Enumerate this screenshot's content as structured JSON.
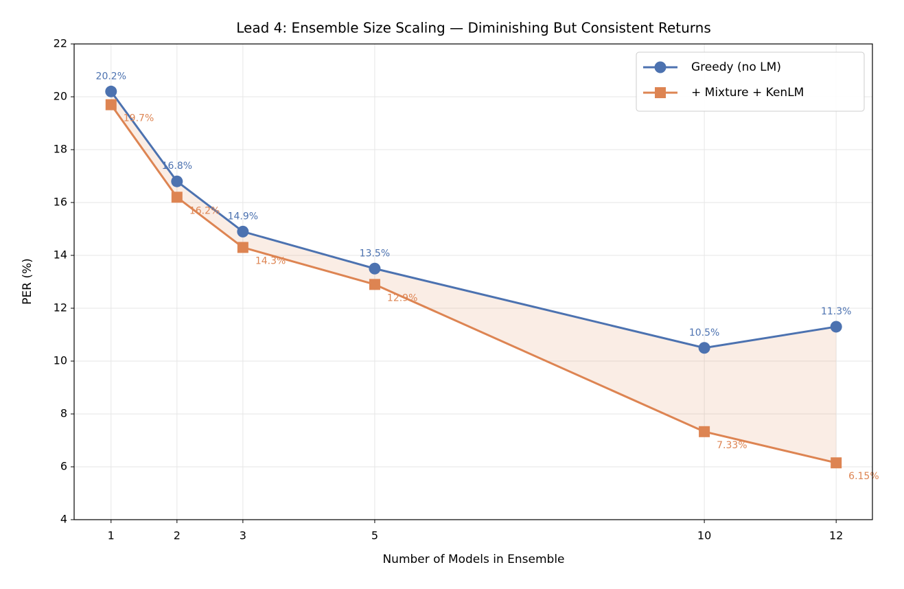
{
  "chart_data": {
    "type": "line",
    "title": "Lead 4: Ensemble Size Scaling — Diminishing But Consistent Returns",
    "x_label": "Number of Models in Ensemble",
    "y_label": "PER (%)",
    "x": [
      1,
      2,
      3,
      5,
      10,
      12
    ],
    "series": [
      {
        "name": "Greedy (no LM)",
        "color": "#4c72b0",
        "marker": "circle",
        "values": [
          20.2,
          16.8,
          14.9,
          13.5,
          10.5,
          11.3
        ],
        "value_labels": [
          "20.2%",
          "16.8%",
          "14.9%",
          "13.5%",
          "10.5%",
          "11.3%"
        ]
      },
      {
        "name": "+ Mixture + KenLM",
        "color": "#dd8452",
        "marker": "square",
        "values": [
          19.7,
          16.2,
          14.3,
          12.9,
          7.33,
          6.15
        ],
        "value_labels": [
          "19.7%",
          "16.2%",
          "14.3%",
          "12.9%",
          "7.33%",
          "6.15%"
        ]
      }
    ],
    "fill_between": true,
    "xlim": [
      0.44,
      12.55
    ],
    "xticks": [
      1,
      2,
      3,
      5,
      10,
      12
    ],
    "ylim": [
      4,
      22
    ],
    "yticks": [
      4,
      6,
      8,
      10,
      12,
      14,
      16,
      18,
      20,
      22
    ],
    "grid": true,
    "legend": "upper right"
  }
}
